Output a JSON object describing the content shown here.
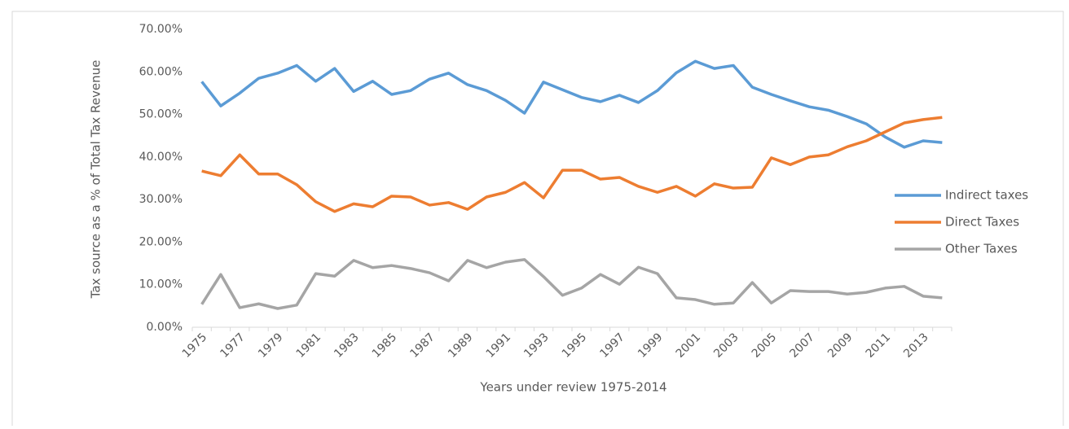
{
  "chart_data": {
    "type": "line",
    "x_label": "Years under review 1975-2014",
    "y_label": "Tax source as a % of Total Tax Revenue",
    "categories": [
      "1975",
      null,
      "1977",
      null,
      "1979",
      null,
      "1981",
      null,
      "1983",
      null,
      "1985",
      null,
      "1987",
      null,
      "1989",
      null,
      "1991",
      null,
      "1993",
      null,
      "1995",
      null,
      "1997",
      null,
      "1999",
      null,
      "2001",
      null,
      "2003",
      null,
      "2005",
      null,
      "2007",
      null,
      "2009",
      null,
      "2011",
      null,
      "2013",
      null
    ],
    "series": [
      {
        "name": "Indirect taxes",
        "color": "#5b9bd5",
        "values": [
          57.7,
          52.0,
          55.0,
          58.5,
          59.7,
          61.5,
          57.8,
          60.8,
          55.4,
          57.8,
          54.7,
          55.6,
          58.3,
          59.7,
          57.0,
          55.6,
          53.3,
          50.3,
          57.6,
          55.8,
          54.0,
          53.0,
          54.5,
          52.8,
          55.6,
          59.8,
          62.5,
          60.8,
          61.5,
          56.4,
          54.7,
          53.2,
          51.8,
          51.0,
          49.5,
          47.8,
          44.7,
          42.3,
          43.8,
          43.4
        ]
      },
      {
        "name": "Direct Taxes",
        "color": "#ed7d31",
        "values": [
          36.7,
          35.6,
          40.5,
          36.0,
          36.0,
          33.5,
          29.5,
          27.2,
          29.0,
          28.3,
          30.8,
          30.6,
          28.7,
          29.3,
          27.7,
          30.6,
          31.7,
          34.0,
          30.4,
          36.9,
          36.9,
          34.8,
          35.2,
          33.1,
          31.7,
          33.1,
          30.8,
          33.7,
          32.7,
          32.9,
          39.8,
          38.2,
          40.0,
          40.5,
          42.4,
          43.8,
          45.9,
          48.0,
          48.8,
          49.3
        ]
      },
      {
        "name": "Other Taxes",
        "color": "#a5a5a5",
        "values": [
          5.4,
          12.4,
          4.6,
          5.5,
          4.4,
          5.2,
          12.6,
          12.0,
          15.7,
          14.0,
          14.5,
          13.8,
          12.8,
          10.9,
          15.7,
          14.0,
          15.3,
          15.9,
          11.9,
          7.5,
          9.2,
          12.4,
          10.1,
          14.1,
          12.6,
          6.9,
          6.5,
          5.4,
          5.7,
          10.5,
          5.7,
          8.6,
          8.4,
          8.4,
          7.8,
          8.2,
          9.2,
          9.6,
          7.3,
          6.9
        ]
      }
    ],
    "ylim": [
      0,
      70
    ],
    "yticks": [
      {
        "value": 0,
        "label": "0.00%"
      },
      {
        "value": 10,
        "label": "10.00%"
      },
      {
        "value": 20,
        "label": "20.00%"
      },
      {
        "value": 30,
        "label": "30.00%"
      },
      {
        "value": 40,
        "label": "40.00%"
      },
      {
        "value": 50,
        "label": "50.00%"
      },
      {
        "value": 60,
        "label": "60.00%"
      },
      {
        "value": 70,
        "label": "70.00%"
      }
    ],
    "grid": false,
    "legend": "right"
  }
}
